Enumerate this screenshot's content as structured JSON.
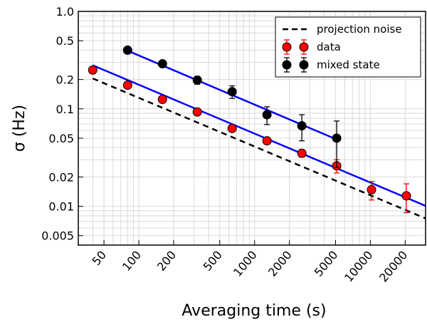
{
  "chart_data": {
    "type": "scatter",
    "xlabel": "Averaging time (s)",
    "ylabel": "σ (Hz)",
    "xscale": "log",
    "yscale": "log",
    "xlim": [
      30,
      30000
    ],
    "ylim": [
      0.004,
      1.0
    ],
    "grid": true,
    "legend_position": "top-right",
    "x_ticks": [
      50,
      100,
      200,
      500,
      1000,
      2000,
      5000,
      10000,
      20000
    ],
    "x_tick_labels": [
      "50",
      "100",
      "200",
      "500",
      "1000",
      "2000",
      "5000",
      "10000",
      "20000"
    ],
    "y_ticks": [
      0.005,
      0.01,
      0.02,
      0.05,
      0.1,
      0.2,
      0.5,
      1.0
    ],
    "y_tick_labels": [
      "0.005",
      "0.01",
      "0.02",
      "0.05",
      "0.1",
      "0.2",
      "0.5",
      "1.0"
    ],
    "series": [
      {
        "name": "projection noise",
        "kind": "line",
        "style": "dashed",
        "color": "#000000",
        "x": [
          40,
          30000
        ],
        "y": [
          0.205,
          0.0075
        ]
      },
      {
        "name": "data",
        "kind": "errorbar",
        "color": "#ff0000",
        "ecolor": "#ff0000",
        "x": [
          40,
          80,
          160,
          320,
          640,
          1280,
          2560,
          5120,
          10240,
          20480
        ],
        "y": [
          0.25,
          0.175,
          0.125,
          0.093,
          0.063,
          0.047,
          0.035,
          0.026,
          0.0148,
          0.0128
        ],
        "yerr": [
          0.005,
          0.005,
          0.004,
          0.004,
          0.003,
          0.003,
          0.003,
          0.004,
          0.0032,
          0.0042
        ]
      },
      {
        "name": "mixed state",
        "kind": "errorbar",
        "color": "#000000",
        "ecolor": "#000000",
        "x": [
          80,
          160,
          320,
          640,
          1280,
          2560,
          5120
        ],
        "y": [
          0.4,
          0.29,
          0.197,
          0.15,
          0.087,
          0.067,
          0.05
        ],
        "yerr": [
          0.01,
          0.012,
          0.018,
          0.022,
          0.018,
          0.02,
          0.025
        ]
      }
    ],
    "fits": [
      {
        "color": "#0000ff",
        "x": [
          40,
          30000
        ],
        "y": [
          0.28,
          0.0101
        ]
      },
      {
        "color": "#0000ff",
        "x": [
          80,
          5120
        ],
        "y": [
          0.395,
          0.0485
        ]
      }
    ]
  }
}
